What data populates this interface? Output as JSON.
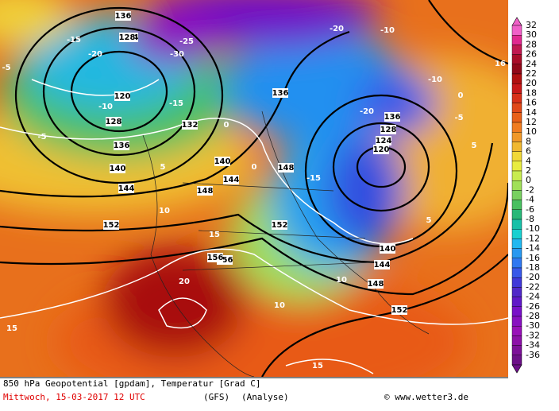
{
  "map": {
    "labels": [
      "136",
      "124",
      "128",
      "120",
      "128",
      "132",
      "136",
      "140",
      "144",
      "152",
      "148",
      "156",
      "156",
      "136",
      "140",
      "144",
      "148",
      "152",
      "136",
      "128",
      "124",
      "120",
      "140",
      "144",
      "148",
      "152",
      "-15",
      "-20",
      "-25",
      "-30",
      "-10",
      "-5",
      "0",
      "5",
      "10",
      "15",
      "20",
      "-15",
      "-20",
      "-10",
      "-5",
      "0",
      "5",
      "10",
      "15",
      "-15",
      "-20",
      "-10",
      "-5",
      "0",
      "5",
      "10",
      "15",
      "16"
    ]
  },
  "colorbar": {
    "ticks": [
      32,
      30,
      28,
      26,
      24,
      22,
      20,
      18,
      16,
      14,
      12,
      10,
      8,
      6,
      4,
      2,
      0,
      -2,
      -4,
      -6,
      -8,
      -10,
      -12,
      -14,
      -16,
      -18,
      -20,
      -22,
      -24,
      -26,
      -28,
      -30,
      -32,
      -34,
      -36
    ],
    "colors": [
      "#f060c8",
      "#e02890",
      "#c01850",
      "#a80c28",
      "#900818",
      "#b01010",
      "#c81818",
      "#d83018",
      "#e04818",
      "#e86018",
      "#f07c20",
      "#f09828",
      "#f0b830",
      "#f0d838",
      "#e8ec40",
      "#c8ec50",
      "#a0e058",
      "#78d060",
      "#48c060",
      "#28b878",
      "#18c0a8",
      "#18d0d0",
      "#20b8f0",
      "#2898f0",
      "#3078f0",
      "#3858e8",
      "#4038d8",
      "#5028c8",
      "#6018c8",
      "#7810c8",
      "#8810c0",
      "#9810b8",
      "#8c10a8",
      "#7c1098",
      "#6c1088"
    ]
  },
  "caption": {
    "line1": "850 hPa Geopotential [gpdam], Temperatur [Grad C]",
    "date": "Mittwoch, 15-03-2017  12 UTC",
    "model": "(GFS)",
    "run": "(Analyse)",
    "credit": "© www.wetter3.de"
  }
}
